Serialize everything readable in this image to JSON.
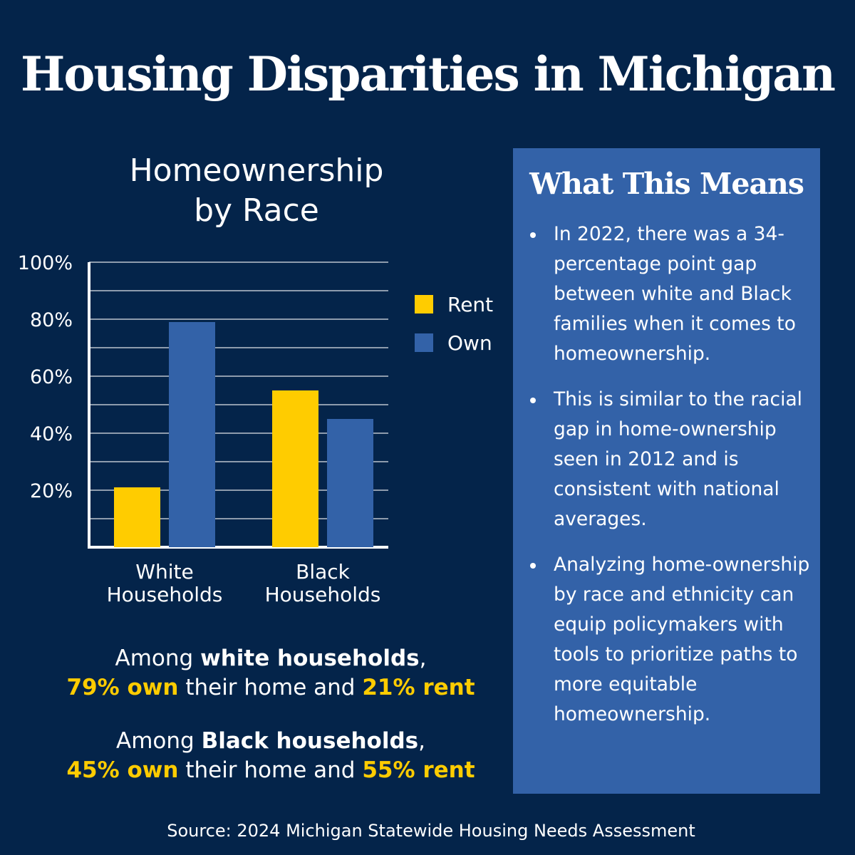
{
  "header": {
    "title": "Housing Disparities in Michigan"
  },
  "chart_data": {
    "type": "bar",
    "title": [
      "Homeownership",
      "by Race"
    ],
    "categories": [
      [
        "White",
        "Households"
      ],
      [
        "Black",
        "Households"
      ]
    ],
    "series": [
      {
        "name": "Rent",
        "color": "#ffcc00",
        "values": [
          21,
          55
        ]
      },
      {
        "name": "Own",
        "color": "#3362a8",
        "values": [
          79,
          45
        ]
      }
    ],
    "ylim": [
      0,
      100
    ],
    "yticks": [
      "20%",
      "40%",
      "60%",
      "80%",
      "100%"
    ],
    "grid": true,
    "legend_position": "right"
  },
  "summary": [
    {
      "prefix": "Among ",
      "group": "white households",
      "suffix": ",",
      "own": "79% own",
      "middle": " their home and ",
      "rent": "21% rent"
    },
    {
      "prefix": "Among ",
      "group": "Black households",
      "suffix": ",",
      "own": "45% own",
      "middle": " their home and ",
      "rent": "55% rent"
    }
  ],
  "panel": {
    "title": "What This Means",
    "bullets": [
      "In 2022, there was a 34-percentage point gap between white and Black families when it comes to homeownership.",
      "This is similar to the racial gap in home-ownership seen in 2012 and is consistent with national averages.",
      "Analyzing home-ownership by race and ethnicity can equip policymakers with tools to prioritize paths to more equitable homeownership."
    ]
  },
  "footer": {
    "source": "Source: 2024 Michigan Statewide Housing Needs Assessment"
  }
}
